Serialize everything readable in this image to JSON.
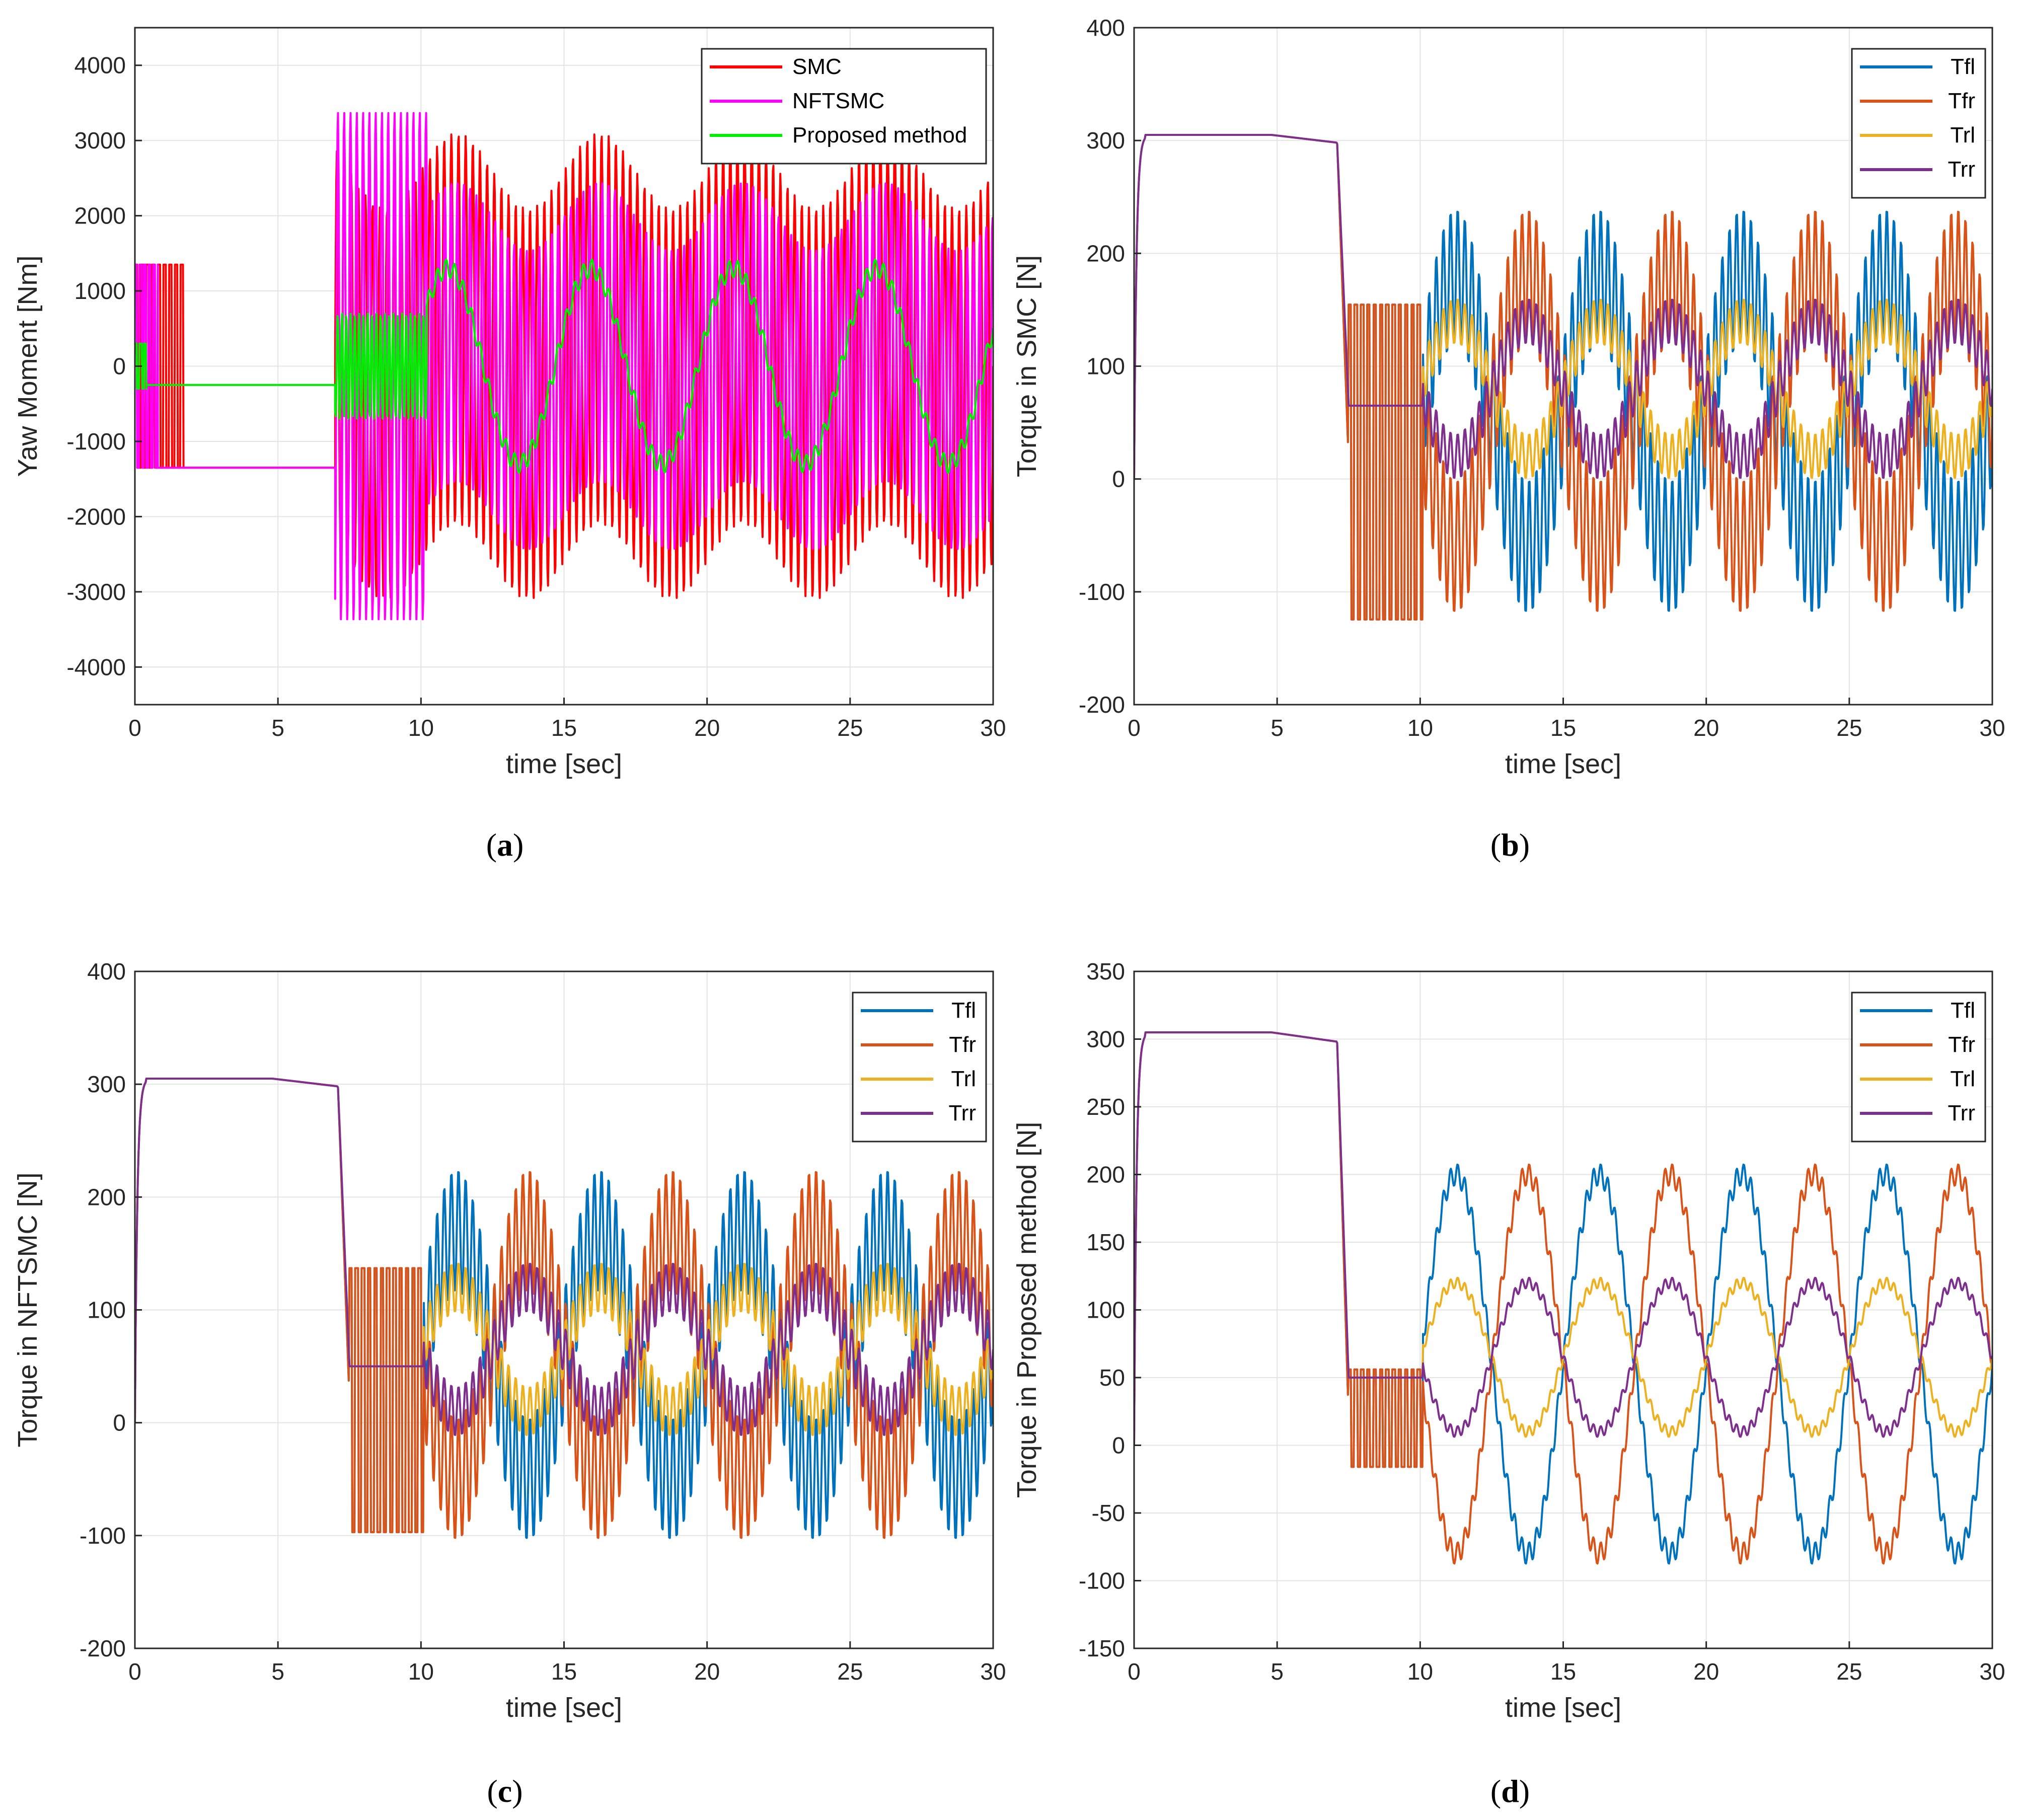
{
  "chart_data": [
    {
      "id": "a",
      "type": "line",
      "caption": "a",
      "xlabel": "time [sec]",
      "ylabel": "Yaw Moment [Nm]",
      "xlim": [
        0,
        30
      ],
      "ylim": [
        -4500,
        4500
      ],
      "xticks": [
        0,
        5,
        10,
        15,
        20,
        25,
        30
      ],
      "yticks": [
        -4000,
        -3000,
        -2000,
        -1000,
        0,
        1000,
        2000,
        3000,
        4000
      ],
      "grid": true,
      "legend_position": "top-right",
      "series": [
        {
          "name": "SMC",
          "color": "#ff0000",
          "segments": [
            {
              "x0": 0,
              "x1": 1.7,
              "mode": "square",
              "amp": 1350,
              "center": 0,
              "period": 0.1
            },
            {
              "x0": 1.7,
              "x1": 7.0,
              "mode": "const",
              "value": -1350
            },
            {
              "x0": 7.0,
              "x1": 30,
              "mode": "osc",
              "amp": 2600,
              "center": 0,
              "slow": 1000,
              "period": 0.25
            }
          ]
        },
        {
          "name": "NFTSMC",
          "color": "#ff00ff",
          "segments": [
            {
              "x0": 0,
              "x1": 0.8,
              "mode": "square",
              "amp": 1350,
              "center": 0,
              "period": 0.08
            },
            {
              "x0": 0.8,
              "x1": 7.0,
              "mode": "const",
              "value": -1350
            },
            {
              "x0": 7.0,
              "x1": 10.2,
              "mode": "osc",
              "amp": 3400,
              "center": 0,
              "slow": 0,
              "period": 0.22
            },
            {
              "x0": 10.2,
              "x1": 30,
              "mode": "osc",
              "amp": 2000,
              "center": 0,
              "slow": 900,
              "period": 0.22
            }
          ]
        },
        {
          "name": "Proposed method",
          "color": "#00ee00",
          "segments": [
            {
              "x0": 0,
              "x1": 0.4,
              "mode": "square",
              "amp": 300,
              "center": 0,
              "period": 0.08
            },
            {
              "x0": 0.4,
              "x1": 7.0,
              "mode": "const",
              "value": -250
            },
            {
              "x0": 7.0,
              "x1": 10.2,
              "mode": "osc",
              "amp": 700,
              "center": 0,
              "slow": 0,
              "period": 0.15
            },
            {
              "x0": 10.2,
              "x1": 30,
              "mode": "smooth",
              "amp": 1300,
              "center": 0,
              "slow": 0,
              "period": 5.0
            }
          ]
        }
      ]
    },
    {
      "id": "b",
      "type": "line",
      "caption": "b",
      "xlabel": "time [sec]",
      "ylabel": "Torque in SMC [N]",
      "xlim": [
        0,
        30
      ],
      "ylim": [
        -200,
        400
      ],
      "xticks": [
        0,
        5,
        10,
        15,
        20,
        25,
        30
      ],
      "yticks": [
        -200,
        -100,
        0,
        100,
        200,
        300,
        400
      ],
      "grid": true,
      "legend_position": "top-right",
      "series": [
        {
          "name": "Tfl",
          "color": "#0072bd",
          "peak": 305,
          "stepTo": 15,
          "stepAmp": 155,
          "osc": 60,
          "slow": 120,
          "phase": 0
        },
        {
          "name": "Tfr",
          "color": "#d95319",
          "peak": 305,
          "stepTo": 15,
          "stepAmp": 155,
          "osc": 60,
          "slow": 120,
          "phase": 3.14159
        },
        {
          "name": "Trl",
          "color": "#edb120",
          "peak": 305,
          "stepTo": 65,
          "stepAmp": 0,
          "osc": 20,
          "slow": 60,
          "phase": 0
        },
        {
          "name": "Trr",
          "color": "#7e2f8e",
          "peak": 305,
          "stepTo": 65,
          "stepAmp": 0,
          "osc": 20,
          "slow": 60,
          "phase": 3.14159
        }
      ]
    },
    {
      "id": "c",
      "type": "line",
      "caption": "c",
      "xlabel": "time [sec]",
      "ylabel": "Torque in NFTSMC [N]",
      "xlim": [
        0,
        30
      ],
      "ylim": [
        -200,
        400
      ],
      "xticks": [
        0,
        5,
        10,
        15,
        20,
        25,
        30
      ],
      "yticks": [
        -200,
        -100,
        0,
        100,
        200,
        300,
        400
      ],
      "grid": true,
      "legend_position": "top-right",
      "series": [
        {
          "name": "Tfl",
          "color": "#0072bd",
          "peak": 305,
          "stepTo": 20,
          "stepAmp": 130,
          "osc": 55,
          "slow": 110,
          "phase": 0
        },
        {
          "name": "Tfr",
          "color": "#d95319",
          "peak": 305,
          "stepTo": 20,
          "stepAmp": 130,
          "osc": 55,
          "slow": 110,
          "phase": 3.14159
        },
        {
          "name": "Trl",
          "color": "#edb120",
          "peak": 305,
          "stepTo": 50,
          "stepAmp": 0,
          "osc": 22,
          "slow": 55,
          "phase": 0
        },
        {
          "name": "Trr",
          "color": "#7e2f8e",
          "peak": 305,
          "stepTo": 50,
          "stepAmp": 0,
          "osc": 22,
          "slow": 55,
          "phase": 3.14159
        }
      ]
    },
    {
      "id": "d",
      "type": "line",
      "caption": "d",
      "xlabel": "time [sec]",
      "ylabel": "Torque in Proposed method [N]",
      "xlim": [
        0,
        30
      ],
      "ylim": [
        -150,
        350
      ],
      "xticks": [
        0,
        5,
        10,
        15,
        20,
        25,
        30
      ],
      "yticks": [
        -150,
        -100,
        -50,
        0,
        50,
        100,
        150,
        200,
        250,
        300,
        350
      ],
      "grid": true,
      "legend_position": "top-right",
      "series": [
        {
          "name": "Tfl",
          "color": "#0072bd",
          "peak": 305,
          "stepTo": 20,
          "stepAmp": 40,
          "osc": 8,
          "slow": 140,
          "phase": 0
        },
        {
          "name": "Tfr",
          "color": "#d95319",
          "peak": 305,
          "stepTo": 20,
          "stepAmp": 40,
          "osc": 8,
          "slow": 140,
          "phase": 3.14159
        },
        {
          "name": "Trl",
          "color": "#edb120",
          "peak": 305,
          "stepTo": 50,
          "stepAmp": 0,
          "osc": 4,
          "slow": 55,
          "phase": 0
        },
        {
          "name": "Trr",
          "color": "#7e2f8e",
          "peak": 305,
          "stepTo": 50,
          "stepAmp": 0,
          "osc": 4,
          "slow": 55,
          "phase": 3.14159
        }
      ]
    }
  ]
}
